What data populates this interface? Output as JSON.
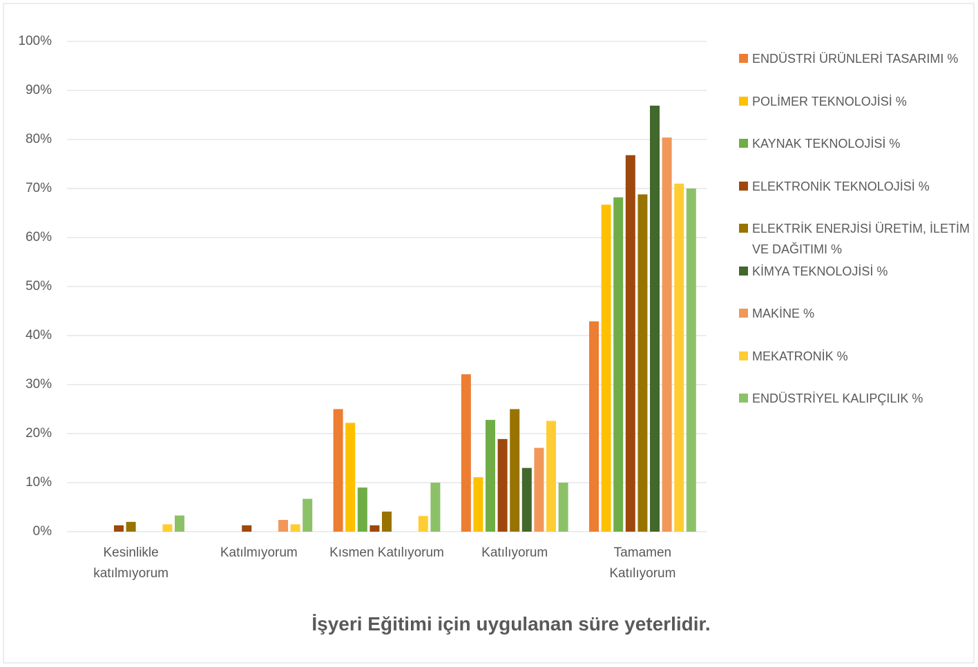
{
  "chart_data": {
    "type": "bar",
    "title": "İşyeri Eğitimi için uygulanan süre yeterlidir.",
    "categories": [
      "Kesinlikle katılmıyorum",
      "Katılmıyorum",
      "Kısmen Katılıyorum",
      "Katılıyorum",
      "Tamamen Katılıyorum"
    ],
    "series": [
      {
        "name": "ENDÜSTRİ ÜRÜNLERİ TASARIMI %",
        "color": "#ed7d31",
        "values": [
          0,
          0,
          25,
          32.1,
          42.9
        ]
      },
      {
        "name": "POLİMER TEKNOLOJİSİ %",
        "color": "#ffc000",
        "values": [
          0,
          0,
          22.2,
          11.1,
          66.7
        ]
      },
      {
        "name": "KAYNAK TEKNOLOJİSİ %",
        "color": "#70ad47",
        "values": [
          0,
          0,
          9,
          22.8,
          68.2
        ]
      },
      {
        "name": "ELEKTRONİK TEKNOLOJİSİ %",
        "color": "#9e480e",
        "values": [
          1.3,
          1.3,
          1.3,
          18.9,
          76.8
        ]
      },
      {
        "name": "ELEKTRİK ENERJİSİ ÜRETİM, İLETİM VE DAĞITIMI %",
        "color": "#997300",
        "values": [
          2,
          0,
          4.1,
          25,
          68.8
        ]
      },
      {
        "name": "KİMYA TEKNOLOJİSİ %",
        "color": "#43682b",
        "values": [
          0,
          0,
          0,
          13,
          86.9
        ]
      },
      {
        "name": "MAKİNE %",
        "color": "#f1975a",
        "values": [
          0,
          2.4,
          0,
          17.1,
          80.4
        ]
      },
      {
        "name": "MEKATRONİK %",
        "color": "#ffcd33",
        "values": [
          1.5,
          1.5,
          3.2,
          22.6,
          71
        ]
      },
      {
        "name": "ENDÜSTRİYEL KALIPÇILIK %",
        "color": "#8cc168",
        "values": [
          3.3,
          6.7,
          10,
          10,
          70
        ]
      }
    ],
    "ylim": [
      0,
      100
    ],
    "yticks": [
      {
        "value": 0,
        "label": "0%"
      },
      {
        "value": 10,
        "label": "10%"
      },
      {
        "value": 20,
        "label": "20%"
      },
      {
        "value": 30,
        "label": "30%"
      },
      {
        "value": 40,
        "label": "40%"
      },
      {
        "value": 50,
        "label": "50%"
      },
      {
        "value": 60,
        "label": "60%"
      },
      {
        "value": 70,
        "label": "70%"
      },
      {
        "value": 80,
        "label": "80%"
      },
      {
        "value": 90,
        "label": "90%"
      },
      {
        "value": 100,
        "label": "100%"
      }
    ],
    "grid": true,
    "legend": "right"
  }
}
